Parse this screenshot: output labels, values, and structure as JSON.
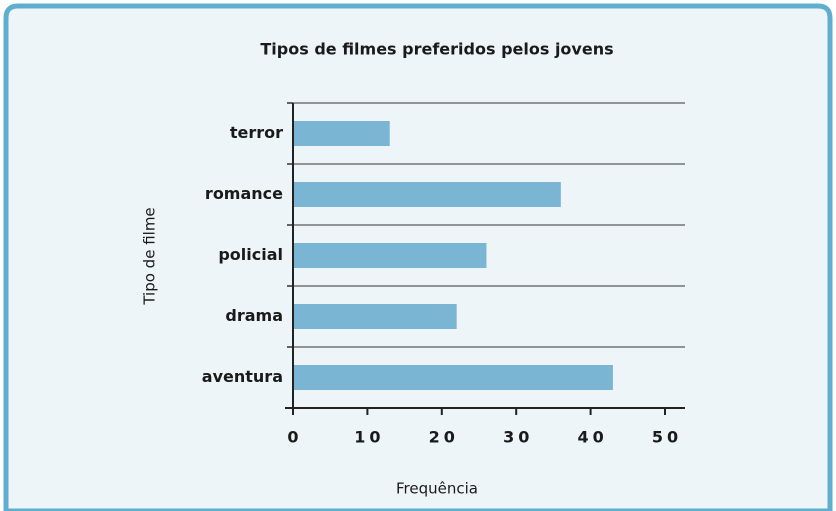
{
  "chart_data": {
    "type": "bar",
    "orientation": "horizontal",
    "title": "Tipos de filmes preferidos pelos jovens",
    "x_label": "Frequência",
    "y_label": "Tipo de filme",
    "categories": [
      "terror",
      "romance",
      "policial",
      "drama",
      "aventura"
    ],
    "values": [
      13,
      36,
      26,
      22,
      43
    ],
    "color": "#7ab6d3",
    "xlim": [
      0,
      50
    ],
    "xticks": [
      0,
      10,
      20,
      30,
      40,
      50
    ],
    "grid": true
  }
}
